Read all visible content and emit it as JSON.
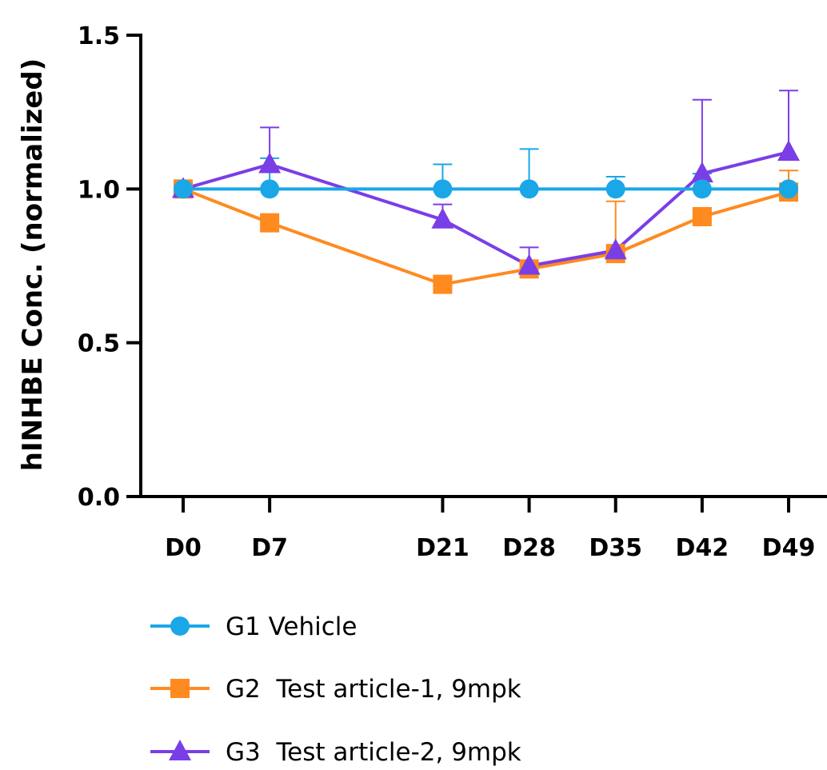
{
  "chart_data": {
    "type": "line",
    "title": "",
    "xlabel": "",
    "ylabel": "hINHBE Conc. (normalized)",
    "x": [
      0,
      7,
      21,
      28,
      35,
      42,
      49
    ],
    "categories": [
      "D0",
      "D7",
      "D21",
      "D28",
      "D35",
      "D42",
      "D49"
    ],
    "ylim": [
      0,
      1.5
    ],
    "yticks": [
      "0.0",
      "0.5",
      "1.0",
      "1.5"
    ],
    "ytick_values": [
      0,
      0.5,
      1.0,
      1.5
    ],
    "grid": false,
    "legend_position": "bottom-left",
    "series": [
      {
        "name": "G1 Vehicle",
        "color": "#1aa7e8",
        "marker": "circle",
        "values": [
          1.0,
          1.0,
          1.0,
          1.0,
          1.0,
          1.0,
          1.0
        ],
        "error_upper": [
          0,
          0.1,
          0.08,
          0.13,
          0.04,
          0.05,
          0.01
        ]
      },
      {
        "name": "G2  Test article-1, 9mpk",
        "color": "#ff8a1f",
        "marker": "square",
        "values": [
          1.0,
          0.89,
          0.69,
          0.74,
          0.79,
          0.91,
          0.99
        ],
        "error_upper": [
          0,
          0,
          0,
          0,
          0.17,
          0,
          0.07
        ]
      },
      {
        "name": "G3  Test article-2, 9mpk",
        "color": "#7a3ee6",
        "marker": "triangle",
        "values": [
          1.0,
          1.08,
          0.9,
          0.75,
          0.8,
          1.05,
          1.12
        ],
        "error_upper": [
          0,
          0.12,
          0.05,
          0.06,
          0,
          0.24,
          0.2
        ]
      }
    ]
  }
}
